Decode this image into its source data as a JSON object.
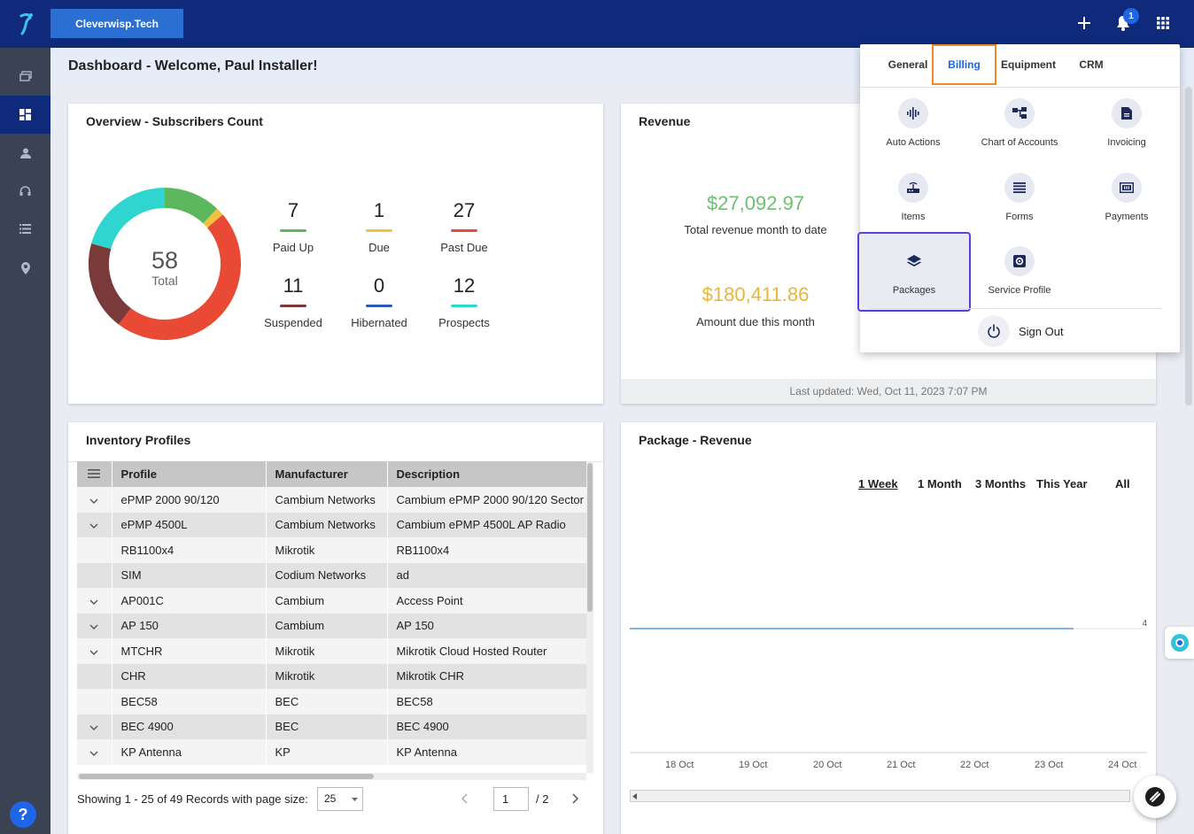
{
  "header": {
    "org_name": "Cleverwisp.Tech",
    "notification_count": "1"
  },
  "page": {
    "title": "Dashboard - Welcome, Paul Installer!"
  },
  "overview": {
    "title": "Overview - Subscribers Count",
    "total_value": "58",
    "total_label": "Total",
    "stats": [
      {
        "value": "7",
        "label": "Paid Up",
        "color": "#5cb85c"
      },
      {
        "value": "1",
        "label": "Due",
        "color": "#f0c040"
      },
      {
        "value": "27",
        "label": "Past Due",
        "color": "#e84a35"
      },
      {
        "value": "11",
        "label": "Suspended",
        "color": "#7a3a3a"
      },
      {
        "value": "0",
        "label": "Hibernated",
        "color": "#2c5ab8"
      },
      {
        "value": "12",
        "label": "Prospects",
        "color": "#2fd6cf"
      }
    ]
  },
  "revenue": {
    "title": "Revenue",
    "month_total": "$27,092.97",
    "month_total_label": "Total revenue month to date",
    "amount_due": "$180,411.86",
    "amount_due_label": "Amount due this month",
    "last_updated": "Last updated: Wed, Oct 11, 2023 7:07 PM",
    "colors": {
      "total": "#6cc070",
      "due": "#e8b63a"
    }
  },
  "inventory": {
    "title": "Inventory Profiles",
    "columns": [
      "Profile",
      "Manufacturer",
      "Description"
    ],
    "rows": [
      {
        "expand": true,
        "profile": "ePMP 2000 90/120",
        "manufacturer": "Cambium Networks",
        "description": "Cambium ePMP 2000 90/120 Sector"
      },
      {
        "expand": true,
        "profile": "ePMP 4500L",
        "manufacturer": "Cambium Networks",
        "description": "Cambium ePMP 4500L AP Radio"
      },
      {
        "expand": false,
        "profile": "RB1100x4",
        "manufacturer": "Mikrotik",
        "description": "RB1100x4"
      },
      {
        "expand": false,
        "profile": "SIM",
        "manufacturer": "Codium Networks",
        "description": "ad"
      },
      {
        "expand": true,
        "profile": "AP001C",
        "manufacturer": "Cambium",
        "description": "Access Point"
      },
      {
        "expand": true,
        "profile": "AP 150",
        "manufacturer": "Cambium",
        "description": "AP 150"
      },
      {
        "expand": true,
        "profile": "MTCHR",
        "manufacturer": "Mikrotik",
        "description": "Mikrotik Cloud Hosted Router"
      },
      {
        "expand": false,
        "profile": "CHR",
        "manufacturer": "Mikrotik",
        "description": "Mikrotik CHR"
      },
      {
        "expand": false,
        "profile": "BEC58",
        "manufacturer": "BEC",
        "description": "BEC58"
      },
      {
        "expand": true,
        "profile": "BEC 4900",
        "manufacturer": "BEC",
        "description": "BEC 4900"
      },
      {
        "expand": true,
        "profile": "KP Antenna",
        "manufacturer": "KP",
        "description": "KP Antenna"
      }
    ],
    "pager": {
      "summary": "Showing 1 - 25 of 49 Records with page size:",
      "page_size": "25",
      "current_page": "1",
      "total_pages": "/ 2"
    }
  },
  "package_revenue": {
    "title": "Package - Revenue",
    "ranges": [
      "1 Week",
      "1 Month",
      "3 Months",
      "This Year",
      "All"
    ],
    "active_range": "1 Week"
  },
  "chart_data": {
    "type": "line",
    "x": [
      "18 Oct",
      "19 Oct",
      "20 Oct",
      "21 Oct",
      "22 Oct",
      "23 Oct",
      "24 Oct"
    ],
    "y_tick_labels": [
      "4"
    ],
    "series": [
      {
        "values": [
          4,
          4,
          4,
          4,
          4,
          4,
          4
        ],
        "color": "#7fb3e0"
      }
    ],
    "grid": true
  },
  "menu": {
    "tabs": [
      "General",
      "Billing",
      "Equipment",
      "CRM"
    ],
    "active_tab": "Billing",
    "items": [
      {
        "label": "Auto Actions",
        "icon": "waveform-icon"
      },
      {
        "label": "Chart of Accounts",
        "icon": "org-chart-icon"
      },
      {
        "label": "Invoicing",
        "icon": "document-icon"
      },
      {
        "label": "Items",
        "icon": "router-icon"
      },
      {
        "label": "Forms",
        "icon": "list-icon"
      },
      {
        "label": "Payments",
        "icon": "cash-icon"
      },
      {
        "label": "Packages",
        "icon": "layers-icon"
      },
      {
        "label": "Service Profile",
        "icon": "settings-icon"
      }
    ],
    "highlighted_item": "Packages",
    "sign_out": "Sign Out"
  }
}
